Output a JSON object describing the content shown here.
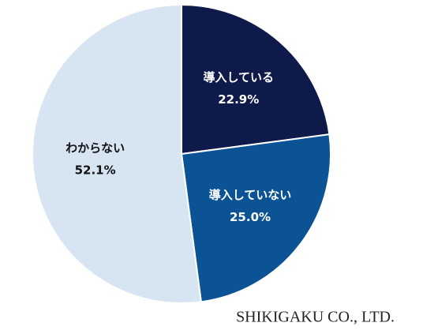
{
  "chart_data": {
    "type": "pie",
    "categories": [
      "導入している",
      "導入していない",
      "わからない"
    ],
    "values": [
      22.9,
      25.0,
      52.1
    ],
    "value_labels": [
      "22.9%",
      "25.0%",
      "52.1%"
    ],
    "colors": [
      "#0e1a4a",
      "#0b5394",
      "#d7e4f2"
    ],
    "annotation": "SHIKIGAKU CO., LTD."
  }
}
